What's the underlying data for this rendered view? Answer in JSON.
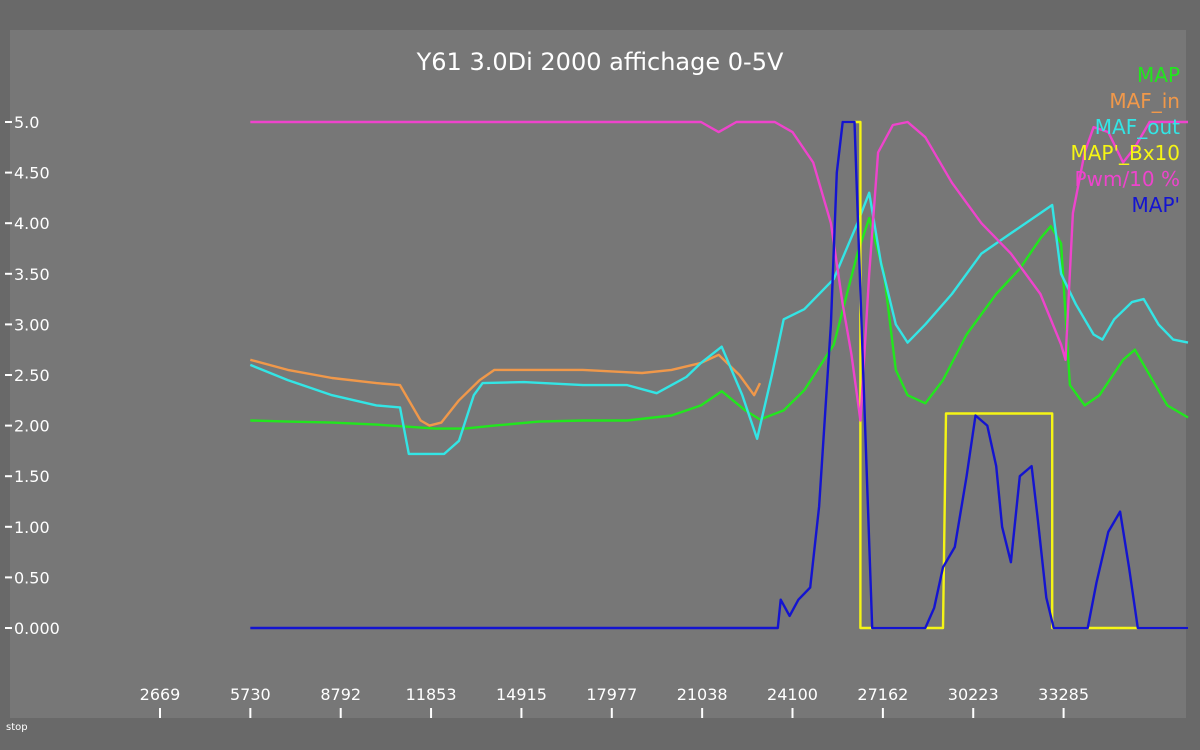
{
  "status_text": "stop",
  "chart_data": {
    "type": "line",
    "title": "Y61 3.0Di 2000 affichage 0-5V",
    "xlabel": "",
    "ylabel": "",
    "xlim": [
      2669,
      37500
    ],
    "ylim": [
      0,
      5
    ],
    "y_ticks": [
      {
        "value": 5.0,
        "label": "5.0"
      },
      {
        "value": 4.5,
        "label": "4.50"
      },
      {
        "value": 4.0,
        "label": "4.00"
      },
      {
        "value": 3.5,
        "label": "3.50"
      },
      {
        "value": 3.0,
        "label": "3.00"
      },
      {
        "value": 2.5,
        "label": "2.50"
      },
      {
        "value": 2.0,
        "label": "2.00"
      },
      {
        "value": 1.5,
        "label": "1.50"
      },
      {
        "value": 1.0,
        "label": "1.00"
      },
      {
        "value": 0.5,
        "label": "0.50"
      },
      {
        "value": 0.0,
        "label": "0.000"
      }
    ],
    "x_ticks": [
      2669,
      5730,
      8792,
      11853,
      14915,
      17977,
      21038,
      24100,
      27162,
      30223,
      33285
    ],
    "grid": false,
    "legend_position": "top-right",
    "series": [
      {
        "name": "MAP",
        "color": "#22e61e",
        "points": [
          [
            5730,
            2.05
          ],
          [
            7000,
            2.04
          ],
          [
            8500,
            2.03
          ],
          [
            10000,
            2.01
          ],
          [
            11000,
            1.99
          ],
          [
            12000,
            1.97
          ],
          [
            13000,
            1.97
          ],
          [
            14000,
            2.0
          ],
          [
            15500,
            2.04
          ],
          [
            17000,
            2.05
          ],
          [
            18500,
            2.05
          ],
          [
            20000,
            2.1
          ],
          [
            21000,
            2.2
          ],
          [
            21700,
            2.34
          ],
          [
            22500,
            2.15
          ],
          [
            23000,
            2.06
          ],
          [
            23800,
            2.15
          ],
          [
            24500,
            2.35
          ],
          [
            25500,
            2.8
          ],
          [
            26300,
            3.7
          ],
          [
            26700,
            4.05
          ],
          [
            27200,
            3.5
          ],
          [
            27600,
            2.55
          ],
          [
            28000,
            2.3
          ],
          [
            28600,
            2.22
          ],
          [
            29200,
            2.45
          ],
          [
            30000,
            2.9
          ],
          [
            31000,
            3.3
          ],
          [
            31800,
            3.55
          ],
          [
            32500,
            3.85
          ],
          [
            32850,
            3.97
          ],
          [
            33200,
            3.8
          ],
          [
            33500,
            2.4
          ],
          [
            34000,
            2.2
          ],
          [
            34500,
            2.3
          ],
          [
            35300,
            2.65
          ],
          [
            35700,
            2.75
          ],
          [
            36200,
            2.5
          ],
          [
            36800,
            2.2
          ],
          [
            37500,
            2.08
          ]
        ]
      },
      {
        "name": "MAF_in",
        "color": "#f0984a",
        "points": [
          [
            5730,
            2.65
          ],
          [
            7000,
            2.55
          ],
          [
            8500,
            2.47
          ],
          [
            10000,
            2.42
          ],
          [
            10800,
            2.4
          ],
          [
            11500,
            2.05
          ],
          [
            11800,
            2.0
          ],
          [
            12200,
            2.03
          ],
          [
            12800,
            2.25
          ],
          [
            13500,
            2.45
          ],
          [
            14000,
            2.55
          ],
          [
            15000,
            2.55
          ],
          [
            17000,
            2.55
          ],
          [
            19000,
            2.52
          ],
          [
            20000,
            2.55
          ],
          [
            21000,
            2.62
          ],
          [
            21600,
            2.7
          ],
          [
            22300,
            2.5
          ],
          [
            22800,
            2.3
          ],
          [
            23000,
            2.42
          ]
        ]
      },
      {
        "name": "MAF_out",
        "color": "#33e5e5",
        "points": [
          [
            5730,
            2.6
          ],
          [
            7000,
            2.45
          ],
          [
            8500,
            2.3
          ],
          [
            10000,
            2.2
          ],
          [
            10800,
            2.18
          ],
          [
            11100,
            1.72
          ],
          [
            12300,
            1.72
          ],
          [
            12800,
            1.85
          ],
          [
            13300,
            2.3
          ],
          [
            13600,
            2.42
          ],
          [
            15000,
            2.43
          ],
          [
            17000,
            2.4
          ],
          [
            18500,
            2.4
          ],
          [
            19500,
            2.32
          ],
          [
            20500,
            2.48
          ],
          [
            21000,
            2.62
          ],
          [
            21700,
            2.78
          ],
          [
            22400,
            2.3
          ],
          [
            22900,
            1.87
          ],
          [
            23400,
            2.5
          ],
          [
            23800,
            3.05
          ],
          [
            24500,
            3.15
          ],
          [
            25500,
            3.45
          ],
          [
            26300,
            4.0
          ],
          [
            26700,
            4.3
          ],
          [
            27100,
            3.6
          ],
          [
            27600,
            3.0
          ],
          [
            28000,
            2.82
          ],
          [
            28600,
            3.0
          ],
          [
            29500,
            3.3
          ],
          [
            30500,
            3.7
          ],
          [
            31500,
            3.9
          ],
          [
            32500,
            4.1
          ],
          [
            32900,
            4.18
          ],
          [
            33200,
            3.5
          ],
          [
            33700,
            3.2
          ],
          [
            34300,
            2.9
          ],
          [
            34600,
            2.85
          ],
          [
            35000,
            3.05
          ],
          [
            35600,
            3.22
          ],
          [
            36000,
            3.25
          ],
          [
            36500,
            3.0
          ],
          [
            37000,
            2.85
          ],
          [
            37500,
            2.82
          ]
        ]
      },
      {
        "name": "MAP'_Bx10",
        "color": "#f5f515",
        "points": [
          [
            25800,
            5.0
          ],
          [
            26400,
            5.0
          ],
          [
            26400,
            0.0
          ],
          [
            27400,
            0.0
          ],
          [
            29200,
            0.0
          ],
          [
            29300,
            2.12
          ],
          [
            32900,
            2.12
          ],
          [
            32900,
            0.0
          ],
          [
            37500,
            0.0
          ]
        ]
      },
      {
        "name": "Pwm/10 %",
        "color": "#ee44cc",
        "points": [
          [
            5730,
            5.0
          ],
          [
            10000,
            5.0
          ],
          [
            15000,
            5.0
          ],
          [
            20000,
            5.0
          ],
          [
            21000,
            5.0
          ],
          [
            21600,
            4.9
          ],
          [
            22200,
            5.0
          ],
          [
            23500,
            5.0
          ],
          [
            24100,
            4.9
          ],
          [
            24800,
            4.6
          ],
          [
            25400,
            4.0
          ],
          [
            25800,
            3.2
          ],
          [
            26100,
            2.7
          ],
          [
            26400,
            2.05
          ],
          [
            26700,
            3.5
          ],
          [
            27000,
            4.7
          ],
          [
            27500,
            4.97
          ],
          [
            28000,
            5.0
          ],
          [
            28600,
            4.85
          ],
          [
            29500,
            4.4
          ],
          [
            30500,
            4.0
          ],
          [
            31500,
            3.7
          ],
          [
            32500,
            3.3
          ],
          [
            33200,
            2.8
          ],
          [
            33350,
            2.65
          ],
          [
            33600,
            4.1
          ],
          [
            34000,
            4.7
          ],
          [
            34300,
            4.95
          ],
          [
            34800,
            4.9
          ],
          [
            35300,
            4.6
          ],
          [
            35700,
            4.75
          ],
          [
            36200,
            5.0
          ],
          [
            37500,
            5.0
          ]
        ]
      },
      {
        "name": "MAP'",
        "color": "#1414d0",
        "points": [
          [
            5730,
            0.0
          ],
          [
            10000,
            0.0
          ],
          [
            15000,
            0.0
          ],
          [
            20000,
            0.0
          ],
          [
            23200,
            0.0
          ],
          [
            23600,
            0.0
          ],
          [
            23700,
            0.28
          ],
          [
            24000,
            0.12
          ],
          [
            24300,
            0.28
          ],
          [
            24700,
            0.4
          ],
          [
            25000,
            1.2
          ],
          [
            25400,
            3.0
          ],
          [
            25600,
            4.5
          ],
          [
            25800,
            5.0
          ],
          [
            26200,
            5.0
          ],
          [
            26500,
            2.5
          ],
          [
            26800,
            0.0
          ],
          [
            28600,
            0.0
          ],
          [
            28900,
            0.2
          ],
          [
            29200,
            0.6
          ],
          [
            29600,
            0.8
          ],
          [
            30000,
            1.5
          ],
          [
            30300,
            2.1
          ],
          [
            30700,
            2.0
          ],
          [
            31000,
            1.6
          ],
          [
            31200,
            1.0
          ],
          [
            31500,
            0.65
          ],
          [
            31800,
            1.5
          ],
          [
            32200,
            1.6
          ],
          [
            32400,
            1.1
          ],
          [
            32700,
            0.3
          ],
          [
            32950,
            0.0
          ],
          [
            34100,
            0.0
          ],
          [
            34400,
            0.45
          ],
          [
            34800,
            0.95
          ],
          [
            35200,
            1.15
          ],
          [
            35500,
            0.6
          ],
          [
            35800,
            0.0
          ],
          [
            37500,
            0.0
          ]
        ]
      }
    ]
  }
}
